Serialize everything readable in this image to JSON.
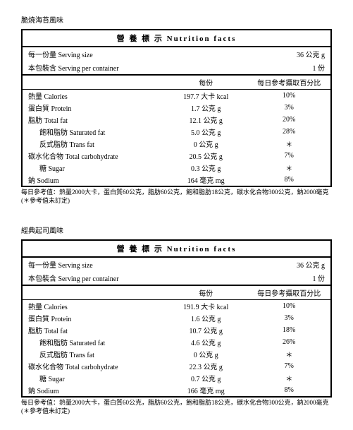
{
  "global": {
    "title": "營 養 標 示  Nutrition facts",
    "serving_size_label": "每一份量 Serving size",
    "serving_per_label": "本包裝含 Serving per container",
    "col_value_header": "每份",
    "col_dv_header": "每日參考攝取百分比",
    "footnote": "每日參考值：熱量2000大卡，蛋白質60公克，脂肪60公克，飽和脂肪18公克，碳水化合物300公克，鈉2000毫克(＊參考值未訂定)"
  },
  "tables": [
    {
      "flavor": "脆燒海苔風味",
      "serving_size": "36 公克 g",
      "serving_per": "1 份",
      "rows": [
        {
          "label": "熱量 Calories",
          "value": "197.7 大卡 kcal",
          "dv": "10%",
          "indent": false
        },
        {
          "label": "蛋白質 Protein",
          "value": "1.7 公克 g",
          "dv": "3%",
          "indent": false
        },
        {
          "label": "脂肪 Total fat",
          "value": "12.1 公克 g",
          "dv": "20%",
          "indent": false
        },
        {
          "label": "飽和脂肪 Saturated fat",
          "value": "5.0 公克 g",
          "dv": "28%",
          "indent": true
        },
        {
          "label": "反式脂肪 Trans fat",
          "value": "0 公克 g",
          "dv": "＊",
          "indent": true
        },
        {
          "label": "碳水化合物 Total carbohydrate",
          "value": "20.5 公克 g",
          "dv": "7%",
          "indent": false
        },
        {
          "label": "糖 Sugar",
          "value": "0.3 公克 g",
          "dv": "＊",
          "indent": true
        },
        {
          "label": "鈉 Sodium",
          "value": "164 毫克 mg",
          "dv": "8%",
          "indent": false
        }
      ]
    },
    {
      "flavor": "經典起司風味",
      "serving_size": "36 公克 g",
      "serving_per": "1 份",
      "rows": [
        {
          "label": "熱量 Calories",
          "value": "191.9 大卡 kcal",
          "dv": "10%",
          "indent": false
        },
        {
          "label": "蛋白質 Protein",
          "value": "1.6 公克 g",
          "dv": "3%",
          "indent": false
        },
        {
          "label": "脂肪 Total fat",
          "value": "10.7 公克 g",
          "dv": "18%",
          "indent": false
        },
        {
          "label": "飽和脂肪 Saturated fat",
          "value": "4.6 公克 g",
          "dv": "26%",
          "indent": true
        },
        {
          "label": "反式脂肪 Trans fat",
          "value": "0 公克 g",
          "dv": "＊",
          "indent": true
        },
        {
          "label": "碳水化合物 Total carbohydrate",
          "value": "22.3 公克 g",
          "dv": "7%",
          "indent": false
        },
        {
          "label": "糖 Sugar",
          "value": "0.7 公克 g",
          "dv": "＊",
          "indent": true
        },
        {
          "label": "鈉 Sodium",
          "value": "166 毫克 mg",
          "dv": "8%",
          "indent": false
        }
      ]
    }
  ]
}
